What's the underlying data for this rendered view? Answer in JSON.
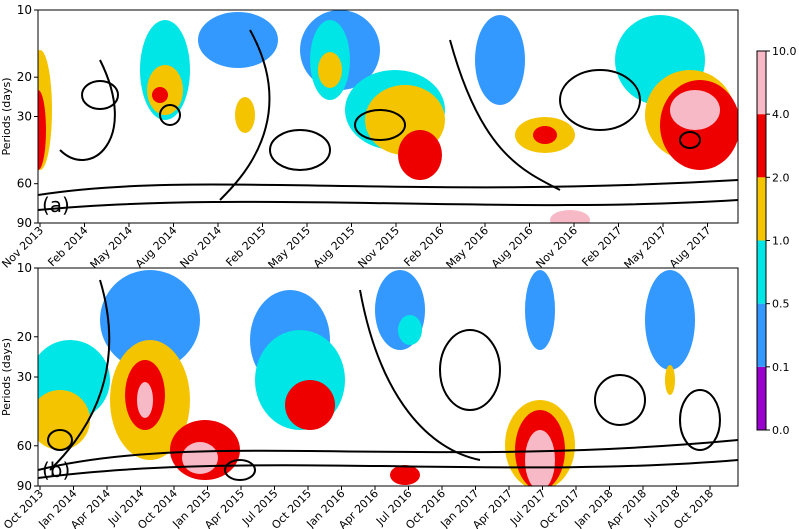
{
  "chart_data": [
    {
      "type": "contour",
      "panel_label": "(a)",
      "ylabel": "Periods (days)",
      "categories": [
        "Nov 2013",
        "Feb 2014",
        "May 2014",
        "Aug 2014",
        "Nov 2014",
        "Feb 2015",
        "May 2015",
        "Aug 2015",
        "Nov 2015",
        "Feb 2016",
        "May 2016",
        "Aug 2016",
        "Nov 2016",
        "Feb 2017",
        "May 2017",
        "Aug 2017"
      ],
      "ylim": [
        10,
        90
      ],
      "yticks": [
        10,
        20,
        30,
        60,
        90
      ],
      "log_y": true
    },
    {
      "type": "contour",
      "panel_label": "(b)",
      "ylabel": "Periods (days)",
      "categories": [
        "Oct 2013",
        "Jan 2014",
        "Apr 2014",
        "Jul 2014",
        "Oct 2014",
        "Jan 2015",
        "Apr 2015",
        "Jul 2015",
        "Oct 2015",
        "Jan 2016",
        "Apr 2016",
        "Jul 2016",
        "Oct 2016",
        "Jan 2017",
        "Apr 2017",
        "Jul 2017",
        "Oct 2017",
        "Jan 2018",
        "Apr 2018",
        "Jul 2018",
        "Oct 2018"
      ],
      "ylim": [
        10,
        90
      ],
      "yticks": [
        10,
        20,
        30,
        60,
        90
      ],
      "log_y": true
    }
  ],
  "colorbar": {
    "levels": [
      {
        "value": 0,
        "label": "0.0"
      },
      0.1,
      0.5,
      {
        "value": 1,
        "label": "1.0"
      },
      {
        "value": 2,
        "label": "2.0"
      },
      {
        "value": 4,
        "label": "4.0"
      },
      {
        "value": 10,
        "label": "10.0"
      }
    ],
    "colors": [
      "#9900cc",
      "#3399ff",
      "#00e5e5",
      "#f5c400",
      "#ee0000",
      "#f8b9c6"
    ]
  }
}
